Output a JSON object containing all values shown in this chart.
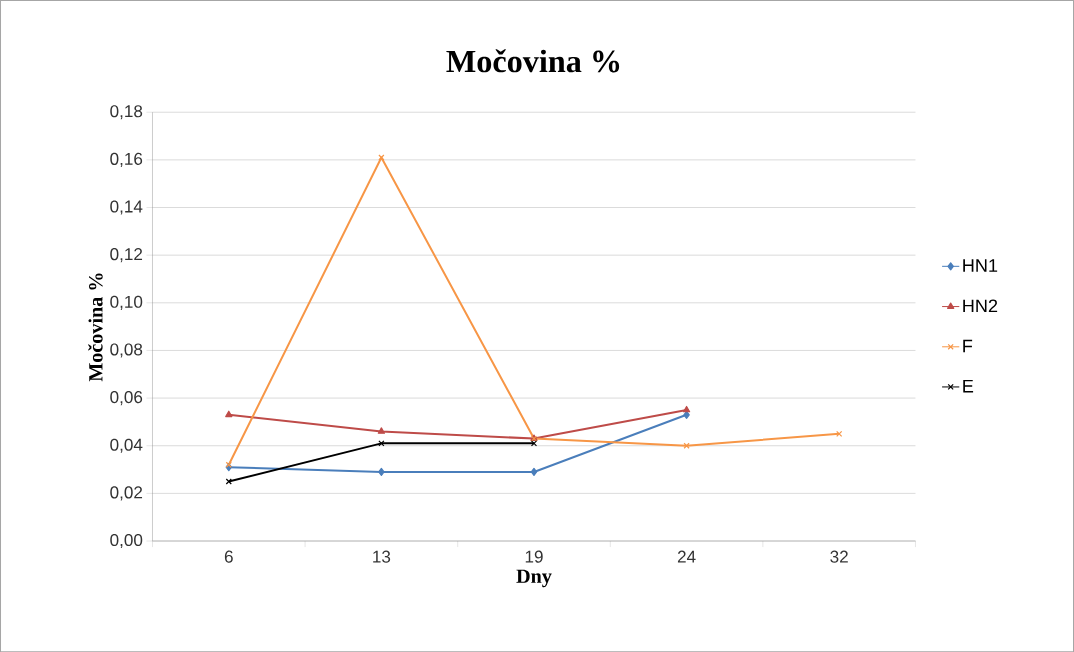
{
  "chart_data": {
    "type": "line",
    "title": "Močovina %",
    "xlabel": "Dny",
    "ylabel": "Močovina %",
    "categories": [
      "6",
      "13",
      "19",
      "24",
      "32"
    ],
    "series": [
      {
        "name": "HN1",
        "color": "#4a7ebb",
        "marker": "diamond",
        "values": [
          0.031,
          0.029,
          0.029,
          0.053,
          null
        ]
      },
      {
        "name": "HN2",
        "color": "#be4b48",
        "marker": "triangle",
        "values": [
          0.053,
          0.046,
          0.043,
          0.055,
          null
        ]
      },
      {
        "name": "F",
        "color": "#f79646",
        "marker": "cross",
        "values": [
          0.032,
          0.161,
          0.043,
          0.04,
          0.045
        ]
      },
      {
        "name": "E",
        "color": "#000000",
        "marker": "cross",
        "values": [
          0.025,
          0.041,
          0.041,
          null,
          null
        ]
      }
    ],
    "ylim": [
      0,
      0.18
    ],
    "yticks": [
      {
        "value": 0,
        "label": "0,00"
      },
      {
        "value": 0.02,
        "label": "0,02"
      },
      {
        "value": 0.04,
        "label": "0,04"
      },
      {
        "value": 0.06,
        "label": "0,06"
      },
      {
        "value": 0.08,
        "label": "0,08"
      },
      {
        "value": 0.1,
        "label": "0,10"
      },
      {
        "value": 0.12,
        "label": "0,12"
      },
      {
        "value": 0.14,
        "label": "0,14"
      },
      {
        "value": 0.16,
        "label": "0,16"
      },
      {
        "value": 0.18,
        "label": "0,18"
      }
    ],
    "grid": "y",
    "legend": "right",
    "line_style": "solid"
  }
}
